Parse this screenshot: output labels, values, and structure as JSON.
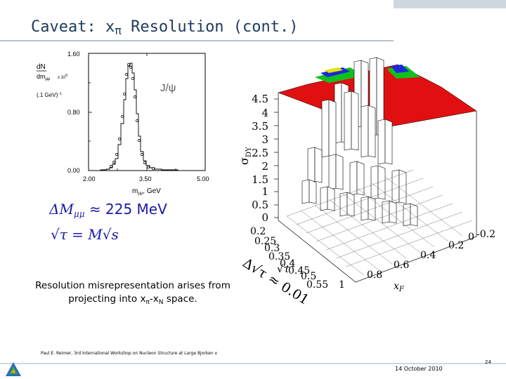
{
  "slide": {
    "title_prefix": "Caveat:  x",
    "title_symbol": "π",
    "title_suffix": " Resolution (cont.)"
  },
  "histogram": {
    "y_label_line1": "dN",
    "y_label_line2": "dm",
    "y_label_sub": "μμ",
    "y_label_scale": "x 10",
    "y_label_exp": "5",
    "y_label_units": "(.1 GeV)",
    "y_label_units_exp": "−1",
    "annotation": "J/ψ",
    "x_axis_label": "m",
    "x_axis_sub": "μμ",
    "x_axis_units": ", GeV",
    "y_ticks": [
      "1.60",
      "0.80",
      "0.00"
    ],
    "x_ticks": [
      "2.00",
      "3.50",
      "5.00"
    ]
  },
  "formula": {
    "line1": "ΔM",
    "line1_sub": "μμ",
    "line1_rest": " ≈ 225 MeV",
    "line2_lhs": "√τ = M√s"
  },
  "lego": {
    "z_axis_label": "σ",
    "z_axis_sub": "DY",
    "z_ticks": [
      "4.5",
      "4",
      "3.5",
      "3",
      "2.5",
      "2",
      "1.5",
      "1",
      "0.5",
      "0"
    ],
    "sqrt_tau_ticks": [
      "0.2",
      "0.25",
      "0.3",
      "0.35",
      "0.4",
      "0.45",
      "0.5",
      "0.55"
    ],
    "xf_ticks": [
      "1",
      "0.8",
      "0.6",
      "0.4",
      "0.2",
      "0",
      "-0.2"
    ],
    "sqrt_tau_label": "√τ",
    "xf_label": "x",
    "xf_sub": "F",
    "delta_label": "Δ√τ ≈ 0.01"
  },
  "caption": {
    "line1": "Resolution misrepresentation arises from",
    "line2_prefix": "projecting into x",
    "line2_sub1": "π",
    "line2_mid": "-x",
    "line2_sub2": "N",
    "line2_suffix": " space."
  },
  "footer": {
    "credit": "Paul E. Reimer, 3rd International Workshop on Nucleon Structure at Large Bjorken x",
    "date": "14 October 2010",
    "page": "24"
  },
  "colors": {
    "title": "#1f3a5c",
    "formula": "#1a1aa6",
    "annotation": "#5a5a5a",
    "lego_red": "#e01010",
    "lego_green": "#10c020",
    "lego_blue": "#1a2ad8",
    "lego_yellow": "#e6e000"
  }
}
